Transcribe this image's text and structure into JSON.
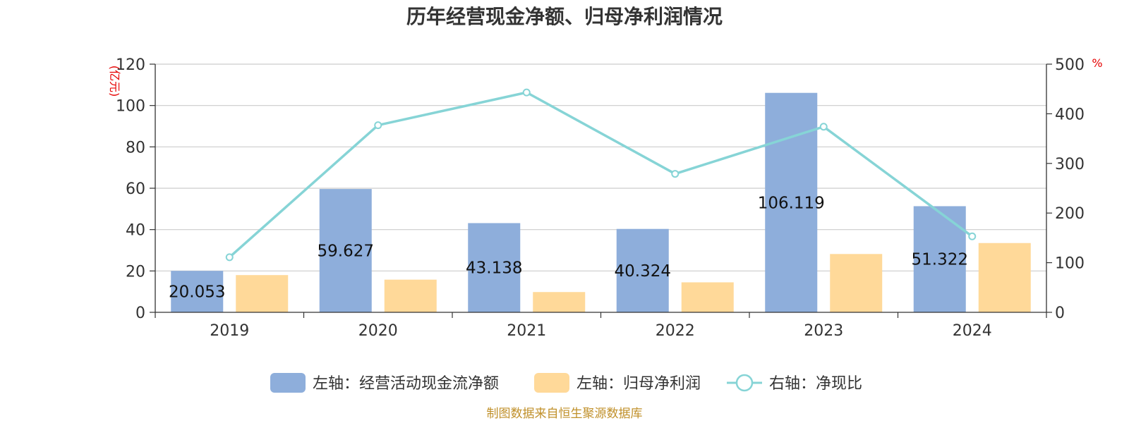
{
  "chart_data": {
    "type": "bar",
    "title": "历年经营现金净额、归母净利润情况",
    "categories": [
      "2019",
      "2020",
      "2021",
      "2022",
      "2023",
      "2024"
    ],
    "series": [
      {
        "name": "左轴：经营活动现金流净额",
        "type": "bar",
        "axis": "left",
        "color": "#8eaedb",
        "values": [
          20.053,
          59.627,
          43.138,
          40.324,
          106.119,
          51.322
        ],
        "labels": [
          "20.053",
          "59.627",
          "43.138",
          "40.324",
          "106.119",
          "51.322"
        ]
      },
      {
        "name": "左轴：归母净利润",
        "type": "bar",
        "axis": "left",
        "color": "#ffd999",
        "values": [
          18.0,
          15.8,
          9.8,
          14.5,
          28.2,
          33.5
        ]
      },
      {
        "name": "右轴：净现比",
        "type": "line",
        "axis": "right",
        "color": "#86d4d6",
        "values": [
          111,
          377,
          443,
          279,
          374,
          153
        ]
      }
    ],
    "y_left": {
      "unit": "(亿元)",
      "min": 0,
      "max": 120,
      "ticks": [
        "0",
        "20",
        "40",
        "60",
        "80",
        "100",
        "120"
      ]
    },
    "y_right": {
      "unit": "%",
      "min": 0,
      "max": 500,
      "ticks": [
        "0",
        "100",
        "200",
        "300",
        "400",
        "500"
      ]
    },
    "grid": true,
    "legend_position": "bottom"
  },
  "source": "制图数据来自恒生聚源数据库"
}
